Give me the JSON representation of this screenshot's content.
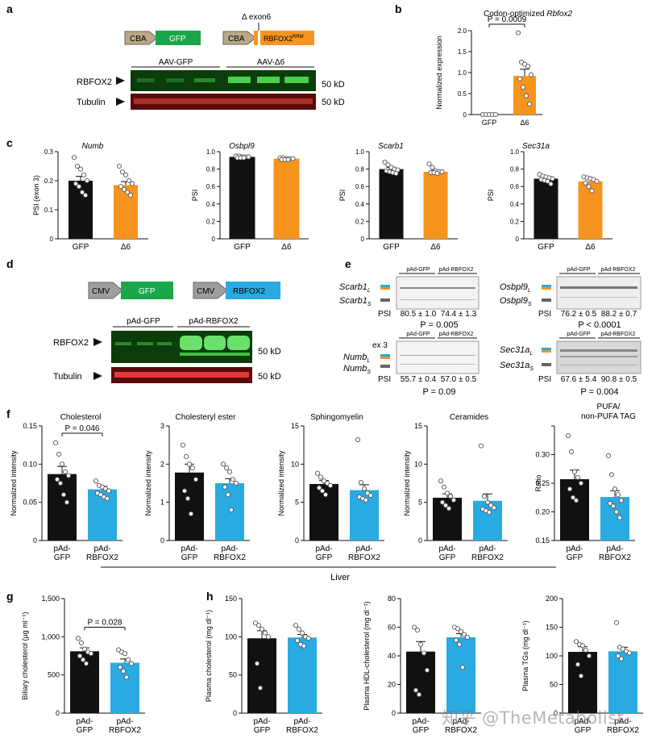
{
  "panels": {
    "a": "a",
    "b": "b",
    "c": "c",
    "d": "d",
    "e": "e",
    "f": "f",
    "g": "g",
    "h": "h"
  },
  "colors": {
    "gfp": "#1aa64a",
    "orange": "#f7941d",
    "blue": "#29aae1",
    "black": "#111111",
    "blot_green": "#0a3d0a",
    "blot_red": "#5a0a0a"
  },
  "panel_a": {
    "construct1": {
      "promoter": "CBA",
      "gene": "GFP"
    },
    "construct2": {
      "promoter": "CBA",
      "gene": "RBFOX2",
      "gene_sup": "RRM",
      "deletion": "Δ exon6"
    },
    "groups": [
      "AAV-GFP",
      "AAV-Δ6"
    ],
    "rows": [
      "RBFOX2",
      "Tubulin"
    ],
    "sizes": [
      "50 kD",
      "50 kD"
    ]
  },
  "panel_d": {
    "construct1": {
      "promoter": "CMV",
      "gene": "GFP"
    },
    "construct2": {
      "promoter": "CMV",
      "gene": "RBFOX2"
    },
    "groups": [
      "pAd-GFP",
      "pAd-RBFOX2"
    ],
    "rows": [
      "RBFOX2",
      "Tubulin"
    ],
    "sizes": [
      "50 kD",
      "50 kD"
    ]
  },
  "panel_e": {
    "gels": [
      {
        "long": "Scarb1",
        "long_sub": "L",
        "short": "Scarb1",
        "short_sub": "S",
        "groups": [
          "pAd-GFP",
          "pAd-RBFOX2"
        ],
        "psi_label": "PSI",
        "psi": [
          "80.5 ± 1.0",
          "74.4 ± 1.3"
        ],
        "p": "P = 0.005"
      },
      {
        "long": "Osbpl9",
        "long_sub": "L",
        "short": "Osbpl9",
        "short_sub": "S",
        "groups": [
          "pAd-GFP",
          "pAd-RBFOX2"
        ],
        "psi_label": "PSI",
        "psi": [
          "76.2 ± 0.5",
          "88.2 ± 0.7"
        ],
        "p": "P < 0.0001"
      },
      {
        "extra": "ex 3",
        "long": "Numb",
        "long_sub": "L",
        "short": "Numb",
        "short_sub": "S",
        "groups": [
          "pAd-GFP",
          "pAd-RBFOX2"
        ],
        "psi_label": "PSI",
        "psi": [
          "55.7 ± 0.4",
          "57.0 ± 0.5"
        ],
        "p": "P = 0.09"
      },
      {
        "long": "Sec31a",
        "long_sub": "L",
        "short": "Sec31a",
        "short_sub": "S",
        "groups": [
          "pAd-GFP",
          "pAd-RBFOX2"
        ],
        "psi_label": "PSI",
        "psi": [
          "67.6 ± 5.4",
          "90.8 ± 0.5"
        ],
        "p": "P = 0.004"
      }
    ]
  },
  "liver_label": "Liver",
  "watermark": "知乎 @TheMetabolist",
  "chart_data": [
    {
      "id": "b",
      "type": "bar",
      "title": "Codon-optimized Rbfox2",
      "ylabel": "Normalized expression",
      "categories": [
        "GFP",
        "Δ6"
      ],
      "values": [
        0.0,
        0.92
      ],
      "errors": [
        0.0,
        0.16
      ],
      "colors": [
        "#111111",
        "#f7941d"
      ],
      "ylim": [
        0,
        2.0
      ],
      "ticks": [
        0,
        0.5,
        1.0,
        1.5,
        2.0
      ],
      "tick_labels": [
        "0",
        "0.5",
        "1.0",
        "1.5",
        "2.0"
      ],
      "p_label": "P = 0.0009",
      "points": [
        [
          0,
          0,
          0,
          0,
          0
        ],
        [
          1.95,
          1.25,
          1.2,
          1.15,
          0.95,
          0.85,
          0.65,
          0.45,
          0.25
        ]
      ]
    },
    {
      "id": "c1",
      "type": "bar",
      "title": "Numb",
      "ylabel": "PSI (exon 3)",
      "categories": [
        "GFP",
        "Δ6"
      ],
      "values": [
        0.2,
        0.185
      ],
      "errors": [
        0.015,
        0.012
      ],
      "colors": [
        "#111111",
        "#f7941d"
      ],
      "ylim": [
        0,
        0.3
      ],
      "ticks": [
        0,
        0.1,
        0.2,
        0.3
      ],
      "tick_labels": [
        "0",
        "0.1",
        "0.2",
        "0.3"
      ],
      "points": [
        [
          0.28,
          0.25,
          0.24,
          0.22,
          0.2,
          0.19,
          0.18,
          0.16,
          0.15
        ],
        [
          0.25,
          0.23,
          0.22,
          0.2,
          0.19,
          0.18,
          0.17,
          0.16,
          0.15
        ]
      ]
    },
    {
      "id": "c2",
      "type": "bar",
      "title": "Osbpl9",
      "ylabel": "PSI",
      "categories": [
        "GFP",
        "Δ6"
      ],
      "values": [
        0.94,
        0.92
      ],
      "errors": [
        0.005,
        0.005
      ],
      "colors": [
        "#111111",
        "#f7941d"
      ],
      "ylim": [
        0,
        1.0
      ],
      "ticks": [
        0,
        0.2,
        0.4,
        0.6,
        0.8,
        1.0
      ],
      "tick_labels": [
        "0",
        "0.2",
        "0.4",
        "0.6",
        "0.8",
        "1.0"
      ],
      "points": [
        [
          0.95,
          0.95,
          0.94,
          0.94,
          0.94,
          0.93,
          0.93,
          0.93
        ],
        [
          0.93,
          0.93,
          0.92,
          0.92,
          0.92,
          0.91,
          0.91,
          0.91
        ]
      ]
    },
    {
      "id": "c3",
      "type": "bar",
      "title": "Scarb1",
      "ylabel": "PSI",
      "categories": [
        "GFP",
        "Δ6"
      ],
      "values": [
        0.8,
        0.77
      ],
      "errors": [
        0.02,
        0.015
      ],
      "colors": [
        "#111111",
        "#f7941d"
      ],
      "ylim": [
        0,
        1.0
      ],
      "ticks": [
        0,
        0.2,
        0.4,
        0.6,
        0.8,
        1.0
      ],
      "tick_labels": [
        "0",
        "0.2",
        "0.4",
        "0.6",
        "0.8",
        "1.0"
      ],
      "points": [
        [
          0.88,
          0.85,
          0.82,
          0.8,
          0.79,
          0.78,
          0.77,
          0.76,
          0.75
        ],
        [
          0.86,
          0.82,
          0.78,
          0.77,
          0.77,
          0.76,
          0.76,
          0.75
        ]
      ]
    },
    {
      "id": "c4",
      "type": "bar",
      "title": "Sec31a",
      "ylabel": "PSI",
      "categories": [
        "GFP",
        "Δ6"
      ],
      "values": [
        0.69,
        0.66
      ],
      "errors": [
        0.02,
        0.03
      ],
      "colors": [
        "#111111",
        "#f7941d"
      ],
      "ylim": [
        0,
        1.0
      ],
      "ticks": [
        0,
        0.2,
        0.4,
        0.6,
        0.8,
        1.0
      ],
      "tick_labels": [
        "0",
        "0.2",
        "0.4",
        "0.6",
        "0.8",
        "1.0"
      ],
      "points": [
        [
          0.74,
          0.72,
          0.71,
          0.7,
          0.69,
          0.68,
          0.67,
          0.66,
          0.63
        ],
        [
          0.71,
          0.7,
          0.69,
          0.68,
          0.66,
          0.64,
          0.6,
          0.55
        ]
      ]
    },
    {
      "id": "f1",
      "type": "bar",
      "title": "Cholesterol",
      "ylabel": "Normalized intensity",
      "categories": [
        "pAd-\nGFP",
        "pAd-\nRBFOX2"
      ],
      "values": [
        0.087,
        0.067
      ],
      "errors": [
        0.01,
        0.004
      ],
      "colors": [
        "#111111",
        "#29aae1"
      ],
      "ylim": [
        0,
        0.15
      ],
      "ticks": [
        0,
        0.05,
        0.1,
        0.15
      ],
      "tick_labels": [
        "0",
        "0.05",
        "0.10",
        "0.15"
      ],
      "p_label": "P = 0.046",
      "points": [
        [
          0.128,
          0.113,
          0.1,
          0.09,
          0.085,
          0.08,
          0.075,
          0.06,
          0.05
        ],
        [
          0.078,
          0.072,
          0.07,
          0.068,
          0.065,
          0.062,
          0.06,
          0.057,
          0.055
        ]
      ]
    },
    {
      "id": "f2",
      "type": "bar",
      "title": "Cholesteryl ester",
      "ylabel": "Normalized intensity",
      "categories": [
        "pAd-\nGFP",
        "pAd-\nRBFOX2"
      ],
      "values": [
        1.78,
        1.5
      ],
      "errors": [
        0.22,
        0.12
      ],
      "colors": [
        "#111111",
        "#29aae1"
      ],
      "ylim": [
        0,
        3
      ],
      "ticks": [
        0,
        1,
        2,
        3
      ],
      "tick_labels": [
        "0",
        "1",
        "2",
        "3"
      ],
      "points": [
        [
          2.5,
          2.2,
          2.0,
          1.9,
          1.6,
          1.3,
          1.1,
          0.7
        ],
        [
          2.0,
          1.9,
          1.8,
          1.6,
          1.5,
          1.4,
          1.2,
          0.8
        ]
      ]
    },
    {
      "id": "f3",
      "type": "bar",
      "title": "Sphingomyelin",
      "ylabel": "Normalized intensity",
      "categories": [
        "pAd-\nGFP",
        "pAd-\nRBFOX2"
      ],
      "values": [
        7.4,
        6.6
      ],
      "errors": [
        0.45,
        0.7
      ],
      "colors": [
        "#111111",
        "#29aae1"
      ],
      "ylim": [
        0,
        15
      ],
      "ticks": [
        0,
        5,
        10,
        15
      ],
      "tick_labels": [
        "0",
        "5",
        "10",
        "15"
      ],
      "points": [
        [
          8.8,
          8.3,
          7.8,
          7.5,
          7.2,
          6.9,
          6.5,
          6.0
        ],
        [
          13.2,
          7.6,
          6.8,
          6.2,
          5.9,
          5.7,
          5.5,
          5.3
        ]
      ]
    },
    {
      "id": "f4",
      "type": "bar",
      "title": "Ceramides",
      "ylabel": "Normalized intensity",
      "categories": [
        "pAd-\nGFP",
        "pAd-\nRBFOX2"
      ],
      "values": [
        5.6,
        5.2
      ],
      "errors": [
        0.5,
        0.9
      ],
      "colors": [
        "#111111",
        "#29aae1"
      ],
      "ylim": [
        0,
        15
      ],
      "ticks": [
        0,
        5,
        10,
        15
      ],
      "tick_labels": [
        "0",
        "5",
        "10",
        "15"
      ],
      "points": [
        [
          7.8,
          7.0,
          6.2,
          5.8,
          5.3,
          5.0,
          4.6,
          4.2
        ],
        [
          12.4,
          5.8,
          5.0,
          4.6,
          4.3,
          4.1,
          3.9,
          3.7
        ]
      ]
    },
    {
      "id": "f5",
      "type": "bar",
      "title": "PUFA/\nnon-PUFA TAG",
      "ylabel": "Ratio",
      "categories": [
        "pAd-\nGFP",
        "pAd-\nRBFOX2"
      ],
      "values": [
        0.257,
        0.226
      ],
      "errors": [
        0.016,
        0.011
      ],
      "colors": [
        "#111111",
        "#29aae1"
      ],
      "ylim": [
        0.15,
        0.35
      ],
      "ticks": [
        0.15,
        0.2,
        0.25,
        0.3,
        0.35
      ],
      "tick_labels": [
        "0.15",
        "0.20",
        "0.25",
        "0.30",
        ""
      ],
      "points": [
        [
          0.333,
          0.305,
          0.27,
          0.26,
          0.25,
          0.24,
          0.225,
          0.22
        ],
        [
          0.298,
          0.265,
          0.24,
          0.23,
          0.22,
          0.215,
          0.21,
          0.2,
          0.19
        ]
      ]
    },
    {
      "id": "g",
      "type": "bar",
      "title": "",
      "ylabel": "Biliary cholesterol (μg ml⁻¹)",
      "categories": [
        "pAd-\nGFP",
        "pAd-\nRBFOX2"
      ],
      "values": [
        810,
        660
      ],
      "errors": [
        45,
        50
      ],
      "colors": [
        "#111111",
        "#29aae1"
      ],
      "ylim": [
        0,
        1500
      ],
      "ticks": [
        0,
        500,
        1000,
        1500
      ],
      "tick_labels": [
        "0",
        "500",
        "1,000",
        "1,500"
      ],
      "p_label": "P = 0.028",
      "points": [
        [
          980,
          920,
          840,
          800,
          780,
          750,
          700,
          650
        ],
        [
          830,
          800,
          780,
          700,
          650,
          600,
          550,
          470
        ]
      ]
    },
    {
      "id": "h1",
      "type": "bar",
      "title": "",
      "ylabel": "Plasma cholesterol (mg dl⁻¹)",
      "categories": [
        "pAd-\nGFP",
        "pAd-\nRBFOX2"
      ],
      "values": [
        98,
        99
      ],
      "errors": [
        10,
        4
      ],
      "colors": [
        "#111111",
        "#29aae1"
      ],
      "ylim": [
        0,
        150
      ],
      "ticks": [
        0,
        50,
        100,
        150
      ],
      "tick_labels": [
        "0",
        "50",
        "100",
        "150"
      ],
      "points": [
        [
          118,
          115,
          110,
          105,
          100,
          65,
          33
        ],
        [
          115,
          110,
          105,
          100,
          98,
          95,
          90,
          88
        ]
      ]
    },
    {
      "id": "h2",
      "type": "bar",
      "title": "",
      "ylabel": "Plasma HDL-cholesterol (mg dl⁻¹)",
      "categories": [
        "pAd-\nGFP",
        "pAd-\nRBFOX2"
      ],
      "values": [
        43,
        53
      ],
      "errors": [
        7,
        2.5
      ],
      "colors": [
        "#111111",
        "#29aae1"
      ],
      "ylim": [
        0,
        80
      ],
      "ticks": [
        0,
        20,
        40,
        60,
        80
      ],
      "tick_labels": [
        "0",
        "20",
        "40",
        "60",
        "80"
      ],
      "points": [
        [
          60,
          58,
          48,
          42,
          30,
          16,
          13
        ],
        [
          60,
          59,
          57,
          55,
          53,
          51,
          48,
          32
        ]
      ]
    },
    {
      "id": "h3",
      "type": "bar",
      "title": "",
      "ylabel": "Plasma TGs (mg dl⁻¹)",
      "categories": [
        "pAd-\nGFP",
        "pAd-\nRBFOX2"
      ],
      "values": [
        107,
        108
      ],
      "errors": [
        9,
        7
      ],
      "colors": [
        "#111111",
        "#29aae1"
      ],
      "ylim": [
        0,
        200
      ],
      "ticks": [
        0,
        50,
        100,
        150,
        200
      ],
      "tick_labels": [
        "0",
        "50",
        "100",
        "150",
        "200"
      ],
      "points": [
        [
          125,
          120,
          118,
          110,
          100,
          85,
          65
        ],
        [
          158,
          115,
          112,
          108,
          105,
          100,
          95
        ]
      ]
    }
  ]
}
